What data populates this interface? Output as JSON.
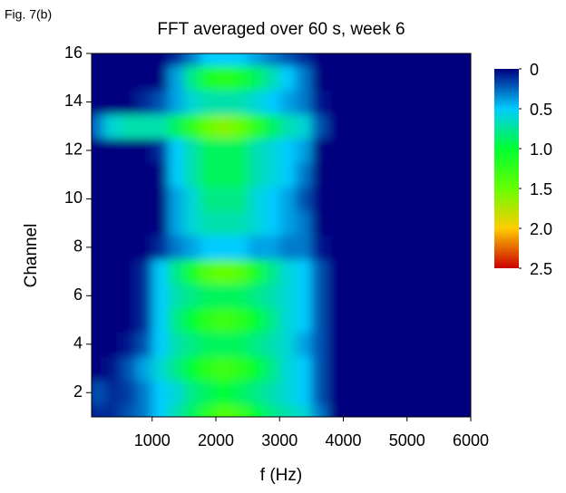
{
  "figure_label": "Fig. 7(b)",
  "chart_data": {
    "type": "heatmap",
    "title": "FFT averaged over 60 s, week 6",
    "x_label": "f (Hz)",
    "y_label": "Channel",
    "x": [
      125,
      375,
      625,
      875,
      1125,
      1375,
      1625,
      1875,
      2125,
      2375,
      2625,
      2875,
      3125,
      3375,
      3625,
      3875,
      4125,
      4375,
      4625,
      4875,
      5125,
      5375,
      5625,
      5875
    ],
    "y": [
      1,
      2,
      3,
      4,
      5,
      6,
      7,
      8,
      9,
      10,
      11,
      12,
      13,
      14,
      15,
      16
    ],
    "z": [
      [
        0.1,
        0.1,
        0.2,
        0.3,
        0.5,
        0.7,
        0.9,
        1.2,
        1.4,
        1.3,
        1.0,
        0.8,
        0.7,
        0.6,
        0.3,
        0,
        0,
        0,
        0,
        0,
        0,
        0,
        0,
        0
      ],
      [
        0.2,
        0.1,
        0.15,
        0.3,
        0.5,
        0.6,
        0.8,
        0.9,
        1.0,
        0.9,
        0.8,
        0.7,
        0.6,
        0.5,
        0.2,
        0,
        0,
        0,
        0,
        0,
        0,
        0,
        0,
        0
      ],
      [
        0,
        0.05,
        0.2,
        0.4,
        0.6,
        0.8,
        1.0,
        1.2,
        1.3,
        1.2,
        1.0,
        0.8,
        0.6,
        0.5,
        0.2,
        0,
        0,
        0,
        0,
        0,
        0,
        0,
        0,
        0
      ],
      [
        0,
        0,
        0.05,
        0.2,
        0.5,
        0.7,
        0.8,
        0.9,
        0.9,
        0.9,
        0.8,
        0.7,
        0.6,
        0.4,
        0.2,
        0,
        0,
        0,
        0,
        0,
        0,
        0,
        0,
        0
      ],
      [
        0,
        0,
        0,
        0.1,
        0.5,
        0.8,
        1.0,
        1.2,
        1.3,
        1.2,
        1.0,
        0.8,
        0.6,
        0.5,
        0.2,
        0,
        0,
        0,
        0,
        0,
        0,
        0,
        0,
        0
      ],
      [
        0,
        0,
        0,
        0.1,
        0.5,
        0.7,
        0.8,
        0.9,
        0.9,
        0.9,
        0.8,
        0.7,
        0.6,
        0.5,
        0.2,
        0,
        0,
        0,
        0,
        0,
        0,
        0,
        0,
        0
      ],
      [
        0,
        0,
        0,
        0.1,
        0.5,
        0.8,
        1.1,
        1.4,
        1.5,
        1.4,
        1.1,
        0.8,
        0.6,
        0.5,
        0.2,
        0,
        0,
        0,
        0,
        0,
        0,
        0,
        0,
        0
      ],
      [
        0,
        0,
        0,
        0,
        0.1,
        0.3,
        0.4,
        0.5,
        0.5,
        0.5,
        0.4,
        0.4,
        0.3,
        0.3,
        0.05,
        0,
        0,
        0,
        0,
        0,
        0,
        0,
        0,
        0
      ],
      [
        0,
        0,
        0,
        0,
        0,
        0.4,
        0.6,
        0.7,
        0.7,
        0.7,
        0.6,
        0.5,
        0.4,
        0.3,
        0,
        0,
        0,
        0,
        0,
        0,
        0,
        0,
        0,
        0
      ],
      [
        0,
        0,
        0,
        0,
        0,
        0.4,
        0.6,
        0.8,
        0.8,
        0.8,
        0.6,
        0.5,
        0.4,
        0.2,
        0,
        0,
        0,
        0,
        0,
        0,
        0,
        0,
        0,
        0
      ],
      [
        0,
        0,
        0,
        0,
        0,
        0.5,
        0.7,
        0.9,
        0.9,
        0.9,
        0.7,
        0.6,
        0.5,
        0.3,
        0,
        0,
        0,
        0,
        0,
        0,
        0,
        0,
        0,
        0
      ],
      [
        0,
        0,
        0,
        0,
        0.1,
        0.5,
        0.7,
        0.9,
        0.9,
        0.9,
        0.7,
        0.6,
        0.5,
        0.4,
        0,
        0,
        0,
        0,
        0,
        0,
        0,
        0,
        0,
        0
      ],
      [
        0.3,
        0.6,
        0.7,
        0.7,
        0.7,
        0.9,
        1.2,
        1.5,
        1.6,
        1.5,
        1.2,
        0.9,
        0.7,
        0.6,
        0.2,
        0,
        0,
        0,
        0,
        0,
        0,
        0,
        0,
        0
      ],
      [
        0,
        0,
        0,
        0.1,
        0.2,
        0.4,
        0.6,
        0.7,
        0.7,
        0.7,
        0.6,
        0.5,
        0.4,
        0.3,
        0.05,
        0,
        0,
        0,
        0,
        0,
        0,
        0,
        0,
        0
      ],
      [
        0,
        0,
        0,
        0,
        0,
        0.4,
        0.8,
        1.1,
        1.2,
        1.1,
        0.9,
        0.7,
        0.5,
        0.3,
        0,
        0,
        0,
        0,
        0,
        0,
        0,
        0,
        0,
        0
      ],
      [
        0,
        0,
        0,
        0,
        0,
        0.1,
        0.3,
        0.5,
        0.5,
        0.5,
        0.4,
        0.3,
        0.2,
        0.1,
        0,
        0,
        0,
        0,
        0,
        0,
        0,
        0,
        0,
        0
      ]
    ],
    "xlim": [
      50,
      6000
    ],
    "xticks": [
      1000,
      2000,
      3000,
      4000,
      5000,
      6000
    ],
    "ylim": [
      1,
      16
    ],
    "yticks": [
      2,
      4,
      6,
      8,
      10,
      12,
      14,
      16
    ],
    "zlim": [
      0,
      2.5
    ],
    "zticks": [
      0,
      0.5,
      {
        "value": 1,
        "label": "1.0"
      },
      1.5,
      {
        "value": 2,
        "label": "2.0"
      },
      2.5
    ],
    "colorscale": [
      "#00007f",
      "#00ccff",
      "#00ff33",
      "#66ff00",
      "#ffcc00",
      "#cc0000"
    ]
  }
}
